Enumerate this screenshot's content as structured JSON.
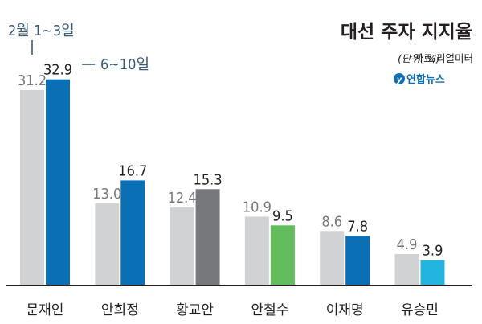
{
  "chart_data": {
    "type": "bar",
    "title": "대선 주자 지지율",
    "unit_note": "(단위: %)",
    "source_note": "자료/리얼미터",
    "agency": "연합뉴스",
    "series": [
      {
        "name": "2월 1~3일",
        "values": [
          31.2,
          13.0,
          12.4,
          10.9,
          8.6,
          4.9
        ]
      },
      {
        "name": "6~10일",
        "values": [
          32.9,
          16.7,
          15.3,
          9.5,
          7.8,
          3.9
        ]
      }
    ],
    "categories": [
      "문재인",
      "안희정",
      "황교안",
      "안철수",
      "이재명",
      "유승민"
    ],
    "value_labels": [
      [
        "31.2",
        "13.0",
        "12.4",
        "10.9",
        "8.6",
        "4.9"
      ],
      [
        "32.9",
        "16.7",
        "15.3",
        "9.5",
        "7.8",
        "3.9"
      ]
    ],
    "ylim": [
      0,
      35
    ],
    "grid": false,
    "colors": {
      "prior": "#d1d2d4",
      "current": [
        "#0a6fb4",
        "#0a6fb4",
        "#77787b",
        "#63bd5c",
        "#0a6fb4",
        "#24b5df"
      ],
      "axis": "#231f20",
      "label_prior": "#77787b",
      "label_current": "#231f20",
      "annotation": "#3b5a78"
    }
  }
}
